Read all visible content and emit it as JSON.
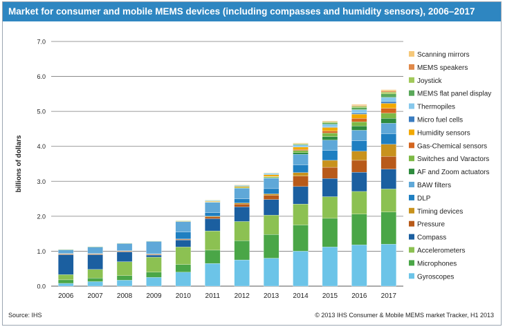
{
  "chart_data": {
    "type": "bar",
    "stacked": true,
    "title": "Market for consumer and mobile MEMS devices (including compasses and humidity sensors), 2006–2017",
    "ylabel": "billions of dollars",
    "xlabel": "",
    "ylim": [
      0,
      7
    ],
    "yticks": [
      "0.0",
      "1.0",
      "2.0",
      "3.0",
      "4.0",
      "5.0",
      "6.0",
      "7.0"
    ],
    "grid": true,
    "legend_position": "right",
    "categories": [
      "2006",
      "2007",
      "2008",
      "2009",
      "2010",
      "2011",
      "2012",
      "2013",
      "2014",
      "2015",
      "2016",
      "2017"
    ],
    "series": [
      {
        "name": "Gyroscopes",
        "color": "#6cc4e8",
        "values": [
          0.08,
          0.13,
          0.17,
          0.25,
          0.4,
          0.65,
          0.75,
          0.8,
          1.0,
          1.12,
          1.18,
          1.2
        ]
      },
      {
        "name": "Microphones",
        "color": "#4aa647",
        "values": [
          0.1,
          0.1,
          0.13,
          0.15,
          0.22,
          0.38,
          0.55,
          0.68,
          0.75,
          0.82,
          0.88,
          0.92
        ]
      },
      {
        "name": "Accelerometers",
        "color": "#8cc152",
        "values": [
          0.15,
          0.25,
          0.4,
          0.43,
          0.5,
          0.55,
          0.55,
          0.55,
          0.6,
          0.62,
          0.65,
          0.66
        ]
      },
      {
        "name": "Compass",
        "color": "#1b5fa0",
        "values": [
          0.57,
          0.42,
          0.28,
          0.06,
          0.2,
          0.35,
          0.42,
          0.45,
          0.5,
          0.52,
          0.55,
          0.57
        ]
      },
      {
        "name": "Pressure",
        "color": "#b85a1a",
        "values": [
          0.02,
          0.02,
          0.02,
          0.02,
          0.02,
          0.05,
          0.08,
          0.12,
          0.3,
          0.32,
          0.34,
          0.36
        ]
      },
      {
        "name": "Timing devices",
        "color": "#c8921d",
        "values": [
          0.01,
          0.01,
          0.01,
          0.01,
          0.01,
          0.02,
          0.03,
          0.04,
          0.1,
          0.2,
          0.26,
          0.35
        ]
      },
      {
        "name": "DLP",
        "color": "#1f7fc1",
        "values": [
          0.01,
          0.01,
          0.01,
          0.01,
          0.2,
          0.1,
          0.12,
          0.15,
          0.22,
          0.28,
          0.3,
          0.3
        ]
      },
      {
        "name": "BAW filters",
        "color": "#5fa8d8",
        "values": [
          0.1,
          0.18,
          0.2,
          0.35,
          0.3,
          0.3,
          0.3,
          0.3,
          0.3,
          0.3,
          0.3,
          0.3
        ]
      },
      {
        "name": "AF and Zoom actuators",
        "color": "#2e8b3e",
        "values": [
          0,
          0,
          0,
          0,
          0,
          0,
          0,
          0.01,
          0.05,
          0.1,
          0.12,
          0.14
        ]
      },
      {
        "name": "Switches and Varactors",
        "color": "#7db946",
        "values": [
          0,
          0,
          0,
          0,
          0,
          0.01,
          0.02,
          0.03,
          0.06,
          0.1,
          0.12,
          0.15
        ]
      },
      {
        "name": "Gas-Chemical sensors",
        "color": "#d4661f",
        "values": [
          0,
          0,
          0,
          0,
          0,
          0,
          0,
          0.01,
          0.03,
          0.06,
          0.1,
          0.14
        ]
      },
      {
        "name": "Humidity sensors",
        "color": "#f2a900",
        "values": [
          0,
          0,
          0,
          0,
          0.01,
          0.02,
          0.03,
          0.05,
          0.07,
          0.1,
          0.12,
          0.14
        ]
      },
      {
        "name": "Micro fuel cells",
        "color": "#3a7cc0",
        "values": [
          0,
          0,
          0,
          0,
          0,
          0,
          0,
          0,
          0,
          0.01,
          0.03,
          0.05
        ]
      },
      {
        "name": "Thermopiles",
        "color": "#86c8ec",
        "values": [
          0,
          0,
          0,
          0,
          0,
          0.02,
          0.03,
          0.04,
          0.06,
          0.08,
          0.1,
          0.12
        ]
      },
      {
        "name": "MEMS flat panel display",
        "color": "#5aa85a",
        "values": [
          0,
          0,
          0,
          0,
          0,
          0,
          0,
          0,
          0.02,
          0.04,
          0.06,
          0.1
        ]
      },
      {
        "name": "Joystick",
        "color": "#a2c95a",
        "values": [
          0.01,
          0.01,
          0.01,
          0.01,
          0.01,
          0.01,
          0.01,
          0.01,
          0.02,
          0.03,
          0.04,
          0.05
        ]
      },
      {
        "name": "MEMS speakers",
        "color": "#e0894a",
        "values": [
          0,
          0,
          0,
          0,
          0,
          0,
          0,
          0,
          0,
          0.01,
          0.02,
          0.03
        ]
      },
      {
        "name": "Scanning mirrors",
        "color": "#f5c87a",
        "values": [
          0,
          0,
          0,
          0,
          0,
          0,
          0.01,
          0.01,
          0.02,
          0.02,
          0.03,
          0.04
        ]
      }
    ]
  },
  "footer": {
    "source": "Source: IHS",
    "copyright": "© 2013 IHS   Consumer & Mobile MEMS market Tracker, H1 2013"
  }
}
